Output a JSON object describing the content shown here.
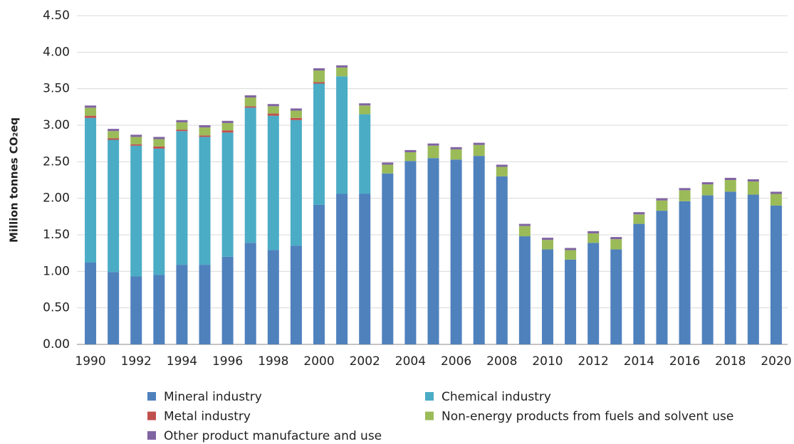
{
  "chart_data": {
    "type": "bar",
    "stacked": true,
    "y_label": "Million tonnes CO₂eq",
    "categories": [
      "1990",
      null,
      "1992",
      null,
      "1994",
      null,
      "1996",
      null,
      "1998",
      null,
      "2000",
      null,
      "2002",
      null,
      "2004",
      null,
      "2006",
      null,
      "2008",
      null,
      "2010",
      null,
      "2012",
      null,
      "2014",
      null,
      "2016",
      null,
      "2018",
      null,
      "2020"
    ],
    "series": [
      {
        "name": "Mineral industry",
        "color": "#4f81bd",
        "values": [
          1.12,
          0.99,
          0.93,
          0.95,
          1.09,
          1.09,
          1.2,
          1.39,
          1.29,
          1.35,
          1.91,
          2.06,
          2.06,
          2.34,
          2.51,
          2.55,
          2.53,
          2.58,
          2.3,
          1.48,
          1.3,
          1.16,
          1.39,
          1.3,
          1.65,
          1.83,
          1.96,
          2.04,
          2.09,
          2.05,
          1.9
        ]
      },
      {
        "name": "Chemical industry",
        "color": "#4bacc6",
        "values": [
          1.98,
          1.81,
          1.79,
          1.73,
          1.83,
          1.75,
          1.7,
          1.85,
          1.84,
          1.72,
          1.66,
          1.61,
          1.09,
          0,
          0,
          0,
          0,
          0,
          0,
          0,
          0,
          0,
          0,
          0,
          0,
          0,
          0,
          0,
          0,
          0,
          0
        ]
      },
      {
        "name": "Metal industry",
        "color": "#c0504d",
        "values": [
          0.03,
          0.02,
          0.02,
          0.03,
          0.02,
          0.02,
          0.03,
          0.02,
          0.03,
          0.03,
          0.02,
          0,
          0,
          0,
          0,
          0,
          0,
          0,
          0,
          0,
          0,
          0,
          0,
          0,
          0,
          0,
          0,
          0,
          0,
          0,
          0
        ]
      },
      {
        "name": "Non-energy products from fuels and solvent use",
        "color": "#9bbb59",
        "values": [
          0.11,
          0.1,
          0.1,
          0.1,
          0.1,
          0.11,
          0.1,
          0.12,
          0.1,
          0.1,
          0.16,
          0.12,
          0.12,
          0.12,
          0.12,
          0.17,
          0.14,
          0.15,
          0.13,
          0.14,
          0.13,
          0.13,
          0.13,
          0.14,
          0.13,
          0.14,
          0.15,
          0.15,
          0.16,
          0.18,
          0.16
        ]
      },
      {
        "name": "Other product manufacture and use",
        "color": "#8064a2",
        "values": [
          0.03,
          0.03,
          0.03,
          0.03,
          0.03,
          0.03,
          0.03,
          0.03,
          0.03,
          0.03,
          0.03,
          0.03,
          0.03,
          0.03,
          0.03,
          0.03,
          0.03,
          0.03,
          0.03,
          0.03,
          0.03,
          0.03,
          0.03,
          0.03,
          0.03,
          0.03,
          0.03,
          0.03,
          0.03,
          0.03,
          0.03
        ]
      }
    ],
    "ylim": [
      0,
      4.5
    ],
    "yticks": [
      {
        "value": 0,
        "label": "0.00"
      },
      {
        "value": 0.5,
        "label": "0.50"
      },
      {
        "value": 1,
        "label": "1.00"
      },
      {
        "value": 1.5,
        "label": "1.50"
      },
      {
        "value": 2,
        "label": "2.00"
      },
      {
        "value": 2.5,
        "label": "2.50"
      },
      {
        "value": 3,
        "label": "3.00"
      },
      {
        "value": 3.5,
        "label": "3.50"
      },
      {
        "value": 4,
        "label": "4.00"
      },
      {
        "value": 4.5,
        "label": "4.50"
      }
    ],
    "grid": true
  }
}
